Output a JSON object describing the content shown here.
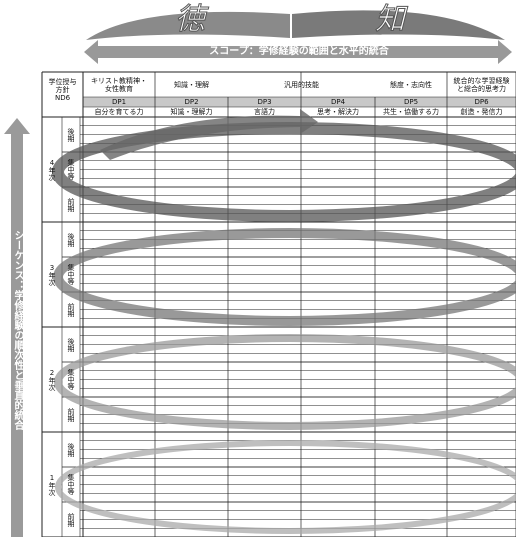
{
  "virtues": [
    "徳",
    "知"
  ],
  "scope_label": "スコープ：学修経験の範囲と水平的統合",
  "sequence_label": "シーケンス：学修経験の順次性と垂直的統合",
  "table": {
    "corner": "学位授与\n方針\nND6",
    "headers": [
      "キリスト教精神・\n女性教育",
      "知識・理解",
      "汎用的技能",
      "態度・志向性",
      "統合的な学習経験\nと総合的思考力"
    ],
    "dp_codes": [
      "DP1",
      "DP2",
      "DP3",
      "DP4",
      "DP5",
      "DP6"
    ],
    "abilities": [
      "自分を育てる力",
      "知識・理解力",
      "言語力",
      "思考・解決力",
      "共生・協働する力",
      "創造・発信力"
    ],
    "years": [
      {
        "label": "4年次",
        "terms": [
          "後期",
          "集中等",
          "前期"
        ]
      },
      {
        "label": "3年次",
        "terms": [
          "後期",
          "集中等",
          "前期"
        ]
      },
      {
        "label": "2年次",
        "terms": [
          "後期",
          "集中等",
          "前期"
        ]
      },
      {
        "label": "1年次",
        "terms": [
          "後期",
          "集中等",
          "前期"
        ]
      }
    ]
  }
}
